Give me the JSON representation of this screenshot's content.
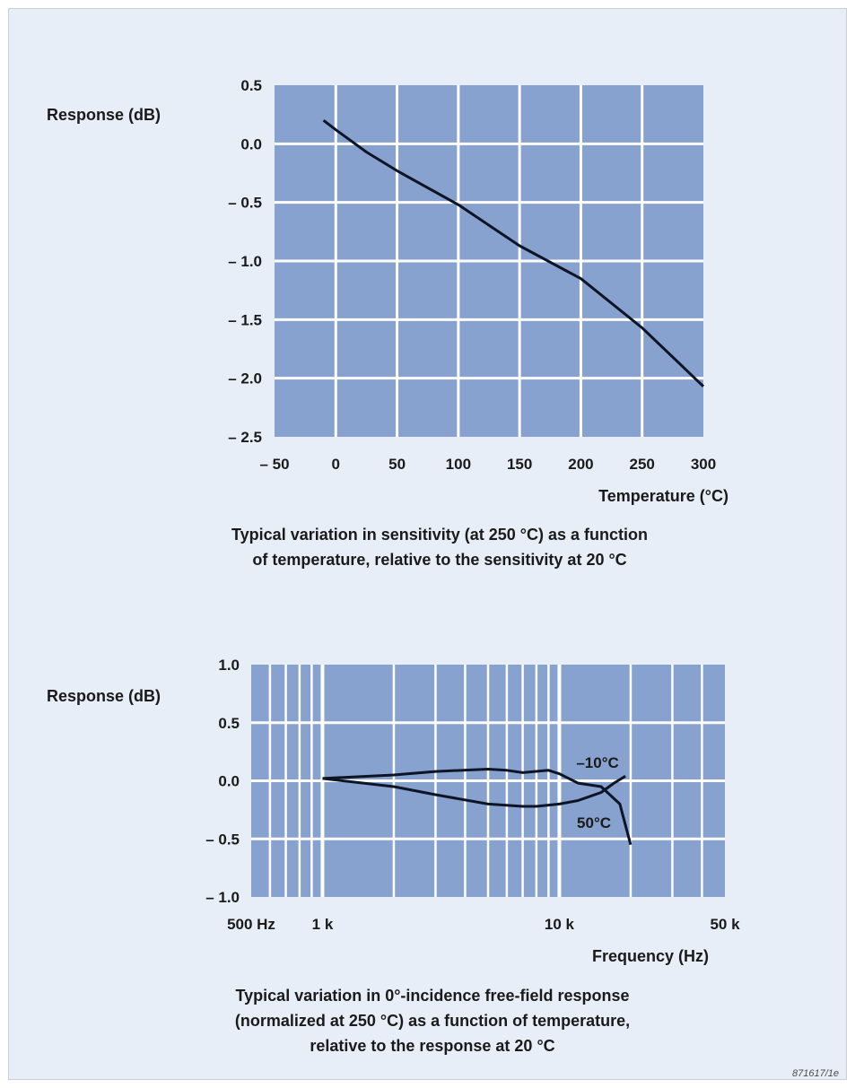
{
  "chart_data": [
    {
      "type": "line",
      "ylabel": "Response (dB)",
      "xlabel": "Temperature (°C)",
      "caption": [
        "Typical variation in sensitivity (at 250 °C) as a function",
        "of temperature, relative to the sensitivity at 20 °C"
      ],
      "xlim": [
        -50,
        300
      ],
      "ylim": [
        -2.5,
        0.5
      ],
      "x_ticks": [
        -50,
        0,
        50,
        100,
        150,
        200,
        250,
        300
      ],
      "x_tick_labels": [
        "– 50",
        "0",
        "50",
        "100",
        "150",
        "200",
        "250",
        "300"
      ],
      "y_ticks": [
        0.5,
        0.0,
        -0.5,
        -1.0,
        -1.5,
        -2.0,
        -2.5
      ],
      "y_tick_labels": [
        "0.5",
        "0.0",
        "– 0.5",
        "– 1.0",
        "– 1.5",
        "– 2.0",
        "– 2.5"
      ],
      "grid": true,
      "series": [
        {
          "x": [
            -10,
            0,
            25,
            50,
            100,
            150,
            200,
            250,
            300
          ],
          "y": [
            0.2,
            0.12,
            -0.07,
            -0.23,
            -0.52,
            -0.87,
            -1.15,
            -1.57,
            -2.07
          ]
        }
      ]
    },
    {
      "type": "line",
      "ylabel": "Response (dB)",
      "xlabel": "Frequency (Hz)",
      "caption": [
        "Typical variation in 0°-incidence free-field response",
        "(normalized at 250 °C) as a function of temperature,",
        "relative to the response at 20 °C"
      ],
      "x_scale": "log",
      "xlim": [
        500,
        50000
      ],
      "ylim": [
        -1.0,
        1.0
      ],
      "x_ticks": [
        500,
        1000,
        10000,
        50000
      ],
      "x_tick_labels": [
        "500 Hz",
        "1 k",
        "10 k",
        "50 k"
      ],
      "y_ticks": [
        1.0,
        0.5,
        0.0,
        -0.5,
        -1.0
      ],
      "y_tick_labels": [
        "1.0",
        "0.5",
        "0.0",
        "– 0.5",
        "– 1.0"
      ],
      "grid": true,
      "series": [
        {
          "name": "–10°C",
          "x": [
            1000,
            2000,
            3000,
            5000,
            6000,
            7000,
            9000,
            10000,
            12000,
            15000,
            18000,
            20000
          ],
          "y": [
            0.02,
            0.05,
            0.08,
            0.1,
            0.09,
            0.07,
            0.09,
            0.06,
            -0.02,
            -0.05,
            -0.2,
            -0.55
          ]
        },
        {
          "name": "50°C",
          "x": [
            1000,
            2000,
            3000,
            5000,
            7000,
            8000,
            10000,
            12000,
            15000,
            17000,
            19000
          ],
          "y": [
            0.02,
            -0.05,
            -0.12,
            -0.2,
            -0.22,
            -0.22,
            -0.2,
            -0.17,
            -0.1,
            -0.02,
            0.04
          ]
        }
      ]
    }
  ],
  "figure_ref": "871617/1e",
  "colors": {
    "plot_fill": "#87a2cf",
    "grid": "#ffffff",
    "curve": "#0d1424",
    "panel": "#e8eef8"
  }
}
